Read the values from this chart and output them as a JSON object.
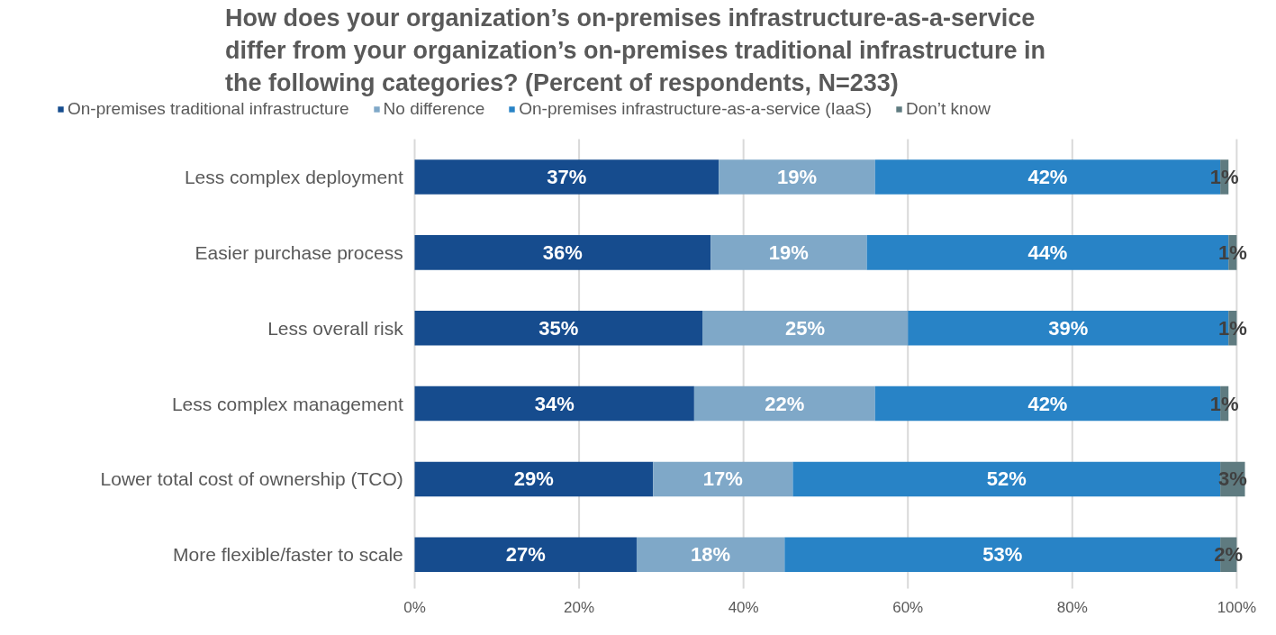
{
  "chart_data": {
    "type": "bar",
    "orientation": "horizontal",
    "stacked": true,
    "title": "How does your organization’s on-premises infrastructure-as-a-service differ from your organization’s on-premises traditional infrastructure in the following categories? (Percent of respondents, N=233)",
    "categories": [
      "Less complex deployment",
      "Easier purchase process",
      "Less overall risk",
      "Less complex management",
      "Lower total cost of ownership (TCO)",
      "More flexible/faster to scale"
    ],
    "series": [
      {
        "name": "On-premises traditional infrastructure",
        "color": "#164c8e",
        "values": [
          37,
          36,
          35,
          34,
          29,
          27
        ],
        "value_labels": [
          "37%",
          "36%",
          "35%",
          "34%",
          "29%",
          "27%"
        ]
      },
      {
        "name": "No difference",
        "color": "#7fa8c8",
        "values": [
          19,
          19,
          25,
          22,
          17,
          18
        ],
        "value_labels": [
          "19%",
          "19%",
          "25%",
          "22%",
          "17%",
          "18%"
        ]
      },
      {
        "name": "On-premises infrastructure-as-a-service (IaaS)",
        "color": "#2883c6",
        "values": [
          42,
          44,
          39,
          42,
          52,
          53
        ],
        "value_labels": [
          "42%",
          "44%",
          "39%",
          "42%",
          "52%",
          "53%"
        ]
      },
      {
        "name": "Don’t know",
        "color": "#5f7b80",
        "values": [
          1,
          1,
          1,
          1,
          3,
          2
        ],
        "value_labels": [
          "1%",
          "1%",
          "1%",
          "1%",
          "3%",
          "2%"
        ]
      }
    ],
    "xlim": [
      0,
      101
    ],
    "xticks": [
      {
        "value": 0,
        "label": "0%"
      },
      {
        "value": 20,
        "label": "20%"
      },
      {
        "value": 40,
        "label": "40%"
      },
      {
        "value": 60,
        "label": "60%"
      },
      {
        "value": 80,
        "label": "80%"
      },
      {
        "value": 100,
        "label": "100%"
      }
    ],
    "grid": "x",
    "legend": "top"
  }
}
